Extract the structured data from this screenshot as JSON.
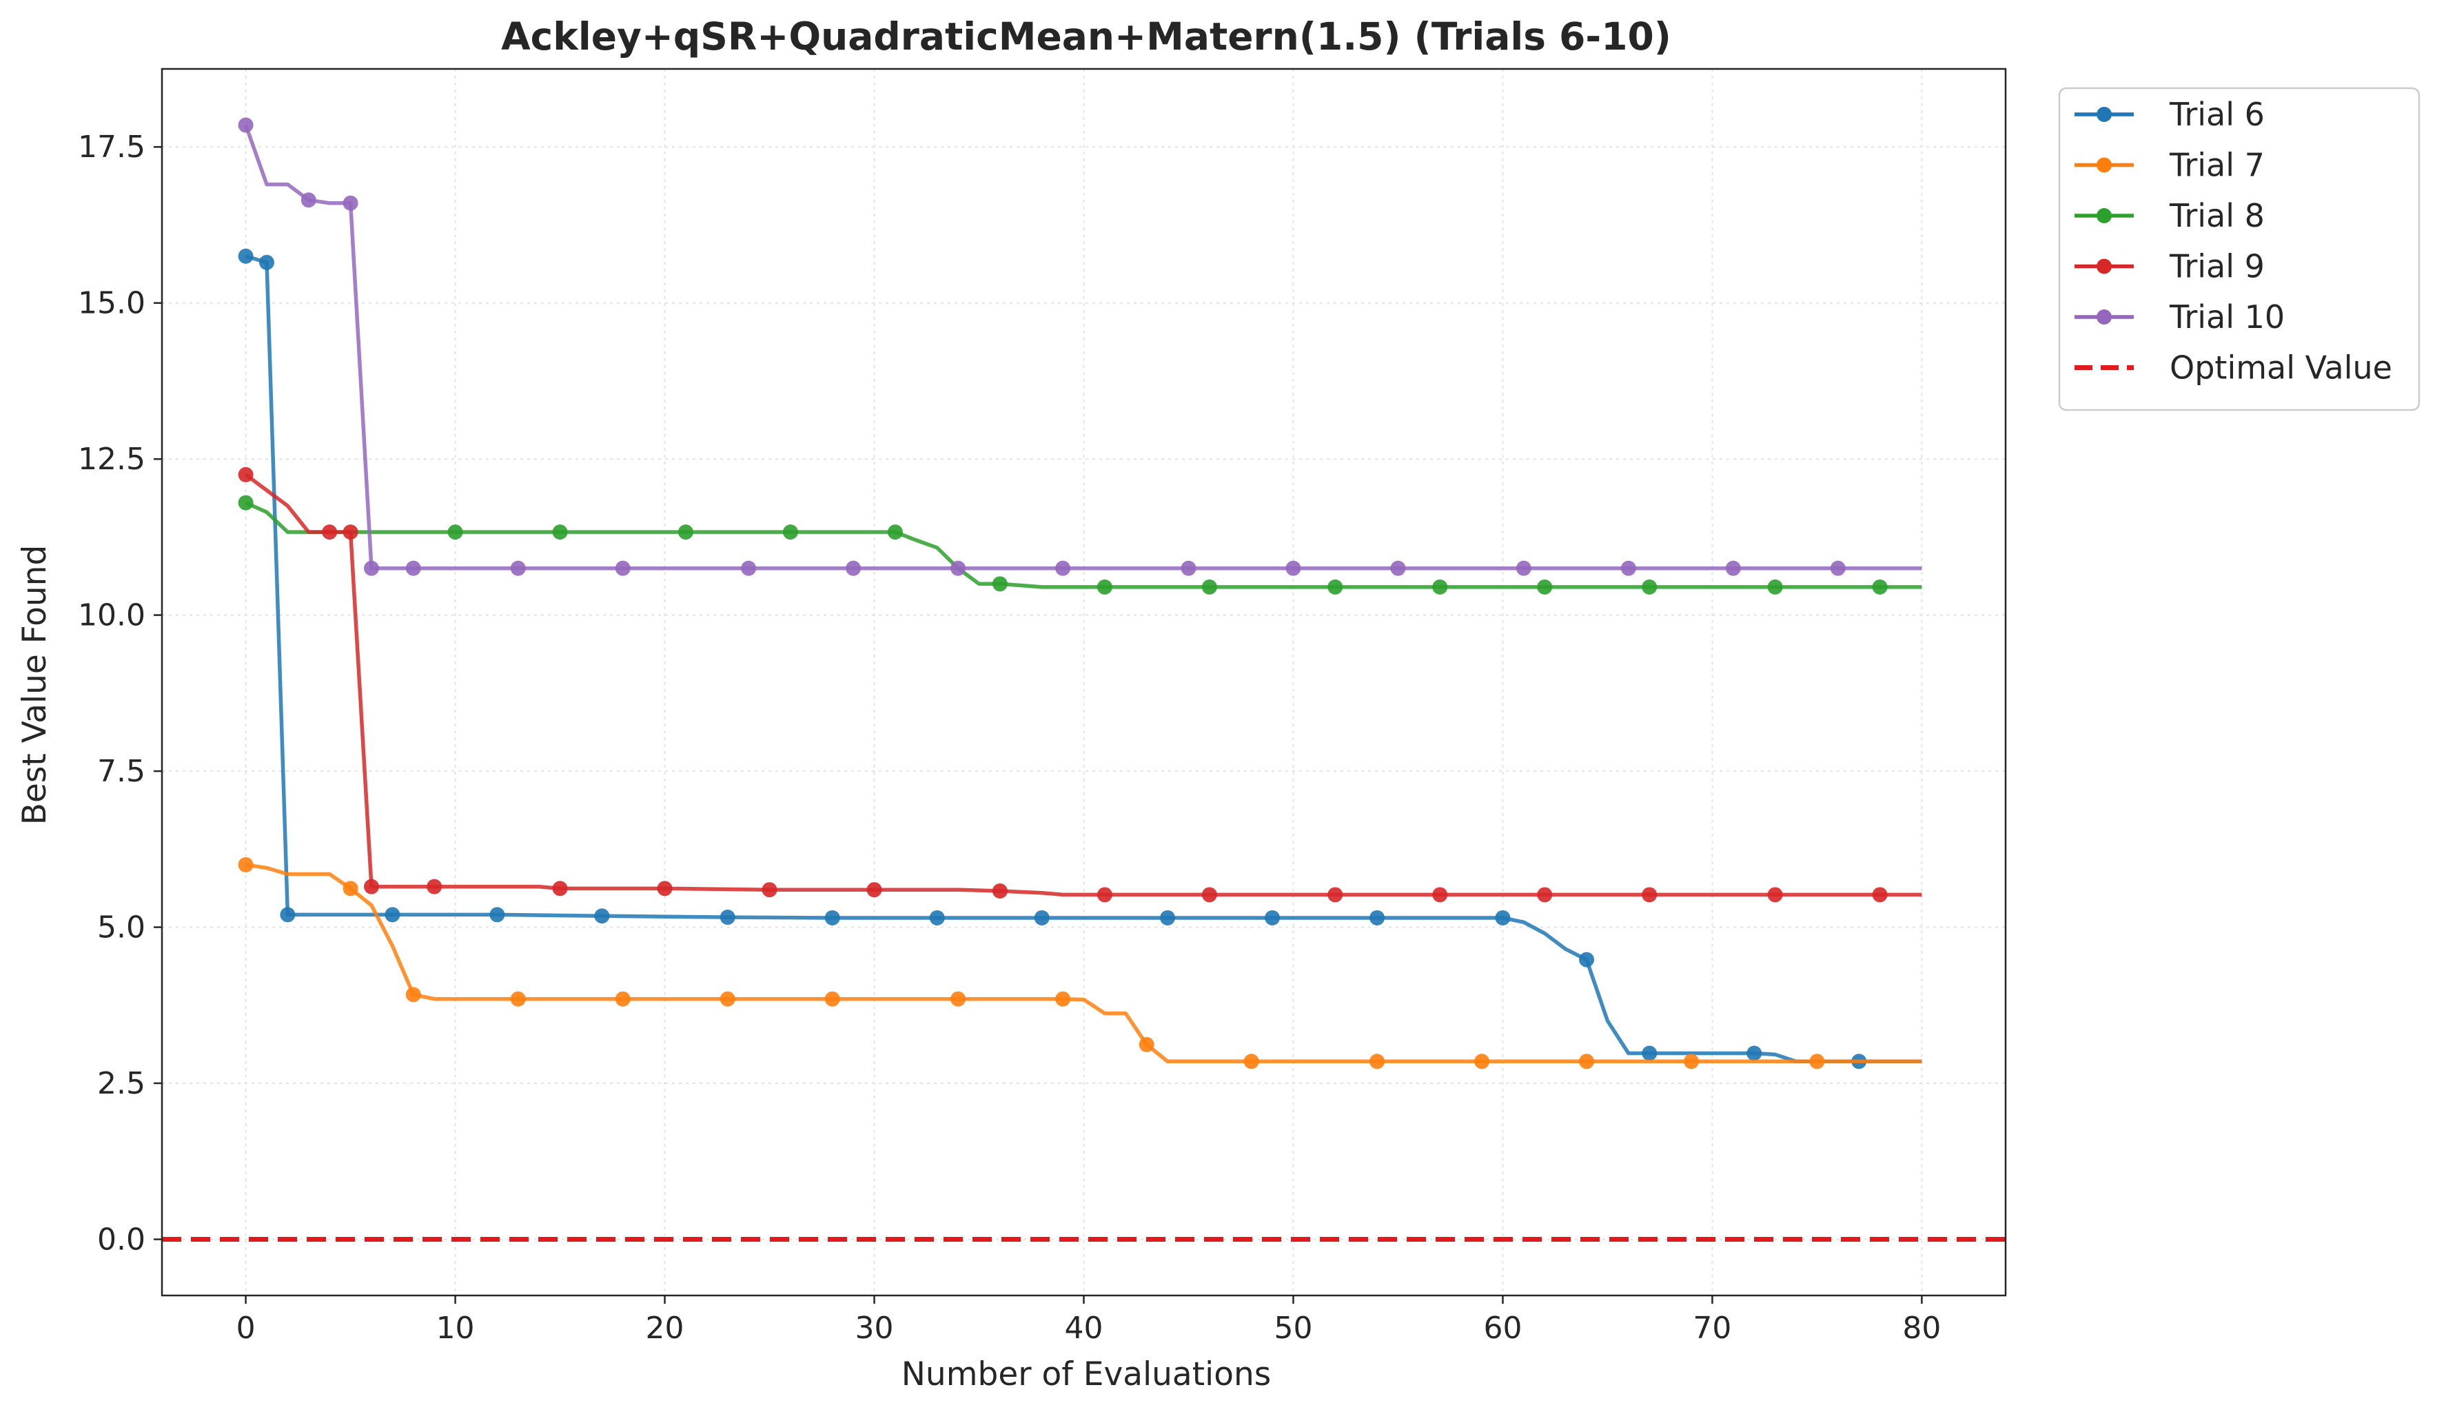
{
  "chart_data": {
    "type": "line",
    "title": "Ackley+qSR+QuadraticMean+Matern(1.5) (Trials 6-10)",
    "xlabel": "Number of Evaluations",
    "ylabel": "Best Value Found",
    "xlim": [
      -4,
      84
    ],
    "ylim": [
      -0.9,
      18.75
    ],
    "xticks": [
      0,
      10,
      20,
      30,
      40,
      50,
      60,
      70,
      80
    ],
    "yticks": [
      0.0,
      2.5,
      5.0,
      7.5,
      10.0,
      12.5,
      15.0,
      17.5
    ],
    "xtick_labels": [
      "0",
      "10",
      "20",
      "30",
      "40",
      "50",
      "60",
      "70",
      "80"
    ],
    "ytick_labels": [
      "0.0",
      "2.5",
      "5.0",
      "7.5",
      "10.0",
      "12.5",
      "15.0",
      "17.5"
    ],
    "grid": true,
    "legend_position": "outside top-right",
    "series": [
      {
        "name": "Trial 6",
        "color": "#1f77b4",
        "points": [
          [
            0,
            15.75
          ],
          [
            1,
            15.65
          ],
          [
            2,
            5.2
          ],
          [
            7,
            5.2
          ],
          [
            12,
            5.2
          ],
          [
            17,
            5.18
          ],
          [
            23,
            5.16
          ],
          [
            28,
            5.15
          ],
          [
            33,
            5.15
          ],
          [
            38,
            5.15
          ],
          [
            44,
            5.15
          ],
          [
            49,
            5.15
          ],
          [
            54,
            5.15
          ],
          [
            60,
            5.15
          ],
          [
            61,
            5.08
          ],
          [
            62,
            4.9
          ],
          [
            63,
            4.65
          ],
          [
            64,
            4.48
          ],
          [
            65,
            3.5
          ],
          [
            66,
            2.98
          ],
          [
            67,
            2.98
          ],
          [
            72,
            2.98
          ],
          [
            73,
            2.96
          ],
          [
            74,
            2.85
          ],
          [
            75,
            2.85
          ],
          [
            77,
            2.85
          ],
          [
            80,
            2.85
          ]
        ],
        "markers": [
          0,
          1,
          2,
          7,
          12,
          17,
          23,
          28,
          33,
          38,
          44,
          49,
          54,
          60,
          64,
          67,
          72,
          77
        ]
      },
      {
        "name": "Trial 7",
        "color": "#ff7f0e",
        "points": [
          [
            0,
            6.0
          ],
          [
            1,
            5.95
          ],
          [
            2,
            5.85
          ],
          [
            3,
            5.85
          ],
          [
            4,
            5.85
          ],
          [
            5,
            5.62
          ],
          [
            6,
            5.35
          ],
          [
            7,
            4.7
          ],
          [
            8,
            3.92
          ],
          [
            9,
            3.85
          ],
          [
            13,
            3.85
          ],
          [
            18,
            3.85
          ],
          [
            23,
            3.85
          ],
          [
            28,
            3.85
          ],
          [
            34,
            3.85
          ],
          [
            39,
            3.85
          ],
          [
            40,
            3.84
          ],
          [
            41,
            3.62
          ],
          [
            42,
            3.62
          ],
          [
            43,
            3.12
          ],
          [
            44,
            2.85
          ],
          [
            48,
            2.85
          ],
          [
            54,
            2.85
          ],
          [
            59,
            2.85
          ],
          [
            64,
            2.85
          ],
          [
            69,
            2.85
          ],
          [
            75,
            2.85
          ],
          [
            80,
            2.85
          ]
        ],
        "markers": [
          0,
          5,
          8,
          13,
          18,
          23,
          28,
          34,
          39,
          43,
          48,
          54,
          59,
          64,
          69,
          75
        ]
      },
      {
        "name": "Trial 8",
        "color": "#2ca02c",
        "points": [
          [
            0,
            11.8
          ],
          [
            1,
            11.65
          ],
          [
            2,
            11.33
          ],
          [
            5,
            11.33
          ],
          [
            10,
            11.33
          ],
          [
            15,
            11.33
          ],
          [
            21,
            11.33
          ],
          [
            26,
            11.33
          ],
          [
            31,
            11.33
          ],
          [
            32,
            11.2
          ],
          [
            33,
            11.08
          ],
          [
            34,
            10.75
          ],
          [
            35,
            10.5
          ],
          [
            36,
            10.5
          ],
          [
            38,
            10.45
          ],
          [
            41,
            10.45
          ],
          [
            46,
            10.45
          ],
          [
            52,
            10.45
          ],
          [
            57,
            10.45
          ],
          [
            62,
            10.45
          ],
          [
            67,
            10.45
          ],
          [
            73,
            10.45
          ],
          [
            78,
            10.45
          ],
          [
            80,
            10.45
          ]
        ],
        "markers": [
          0,
          10,
          15,
          21,
          26,
          31,
          36,
          41,
          46,
          52,
          57,
          62,
          67,
          73,
          78
        ]
      },
      {
        "name": "Trial 9",
        "color": "#d62728",
        "points": [
          [
            0,
            12.25
          ],
          [
            1,
            12.0
          ],
          [
            2,
            11.75
          ],
          [
            3,
            11.33
          ],
          [
            4,
            11.33
          ],
          [
            5,
            11.33
          ],
          [
            6,
            5.65
          ],
          [
            9,
            5.65
          ],
          [
            14,
            5.65
          ],
          [
            15,
            5.62
          ],
          [
            20,
            5.62
          ],
          [
            25,
            5.6
          ],
          [
            30,
            5.6
          ],
          [
            34,
            5.6
          ],
          [
            36,
            5.58
          ],
          [
            38,
            5.55
          ],
          [
            39,
            5.52
          ],
          [
            41,
            5.52
          ],
          [
            46,
            5.52
          ],
          [
            52,
            5.52
          ],
          [
            57,
            5.52
          ],
          [
            62,
            5.52
          ],
          [
            67,
            5.52
          ],
          [
            73,
            5.52
          ],
          [
            78,
            5.52
          ],
          [
            80,
            5.52
          ]
        ],
        "markers": [
          0,
          4,
          5,
          6,
          9,
          15,
          20,
          25,
          30,
          36,
          41,
          46,
          52,
          57,
          62,
          67,
          73,
          78
        ]
      },
      {
        "name": "Trial 10",
        "color": "#9467bd",
        "points": [
          [
            0,
            17.85
          ],
          [
            1,
            16.9
          ],
          [
            2,
            16.9
          ],
          [
            3,
            16.65
          ],
          [
            4,
            16.6
          ],
          [
            5,
            16.6
          ],
          [
            6,
            10.75
          ],
          [
            8,
            10.75
          ],
          [
            13,
            10.75
          ],
          [
            18,
            10.75
          ],
          [
            24,
            10.75
          ],
          [
            29,
            10.75
          ],
          [
            34,
            10.75
          ],
          [
            39,
            10.75
          ],
          [
            45,
            10.75
          ],
          [
            50,
            10.75
          ],
          [
            55,
            10.75
          ],
          [
            61,
            10.75
          ],
          [
            66,
            10.75
          ],
          [
            71,
            10.75
          ],
          [
            76,
            10.75
          ],
          [
            80,
            10.75
          ]
        ],
        "markers": [
          0,
          3,
          5,
          6,
          8,
          13,
          18,
          24,
          29,
          34,
          39,
          45,
          50,
          55,
          61,
          66,
          71,
          76
        ]
      }
    ],
    "reference_line": {
      "name": "Optimal Value",
      "y": 0.0,
      "color": "#e31a1c",
      "style": "dashed"
    }
  }
}
